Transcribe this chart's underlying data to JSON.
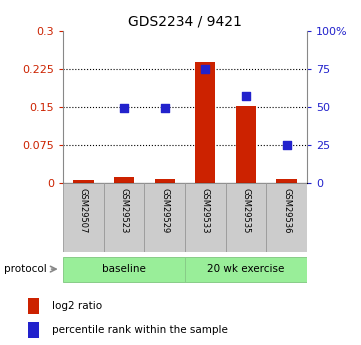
{
  "title": "GDS2234 / 9421",
  "samples": [
    "GSM29507",
    "GSM29523",
    "GSM29529",
    "GSM29533",
    "GSM29535",
    "GSM29536"
  ],
  "log2_ratio": [
    0.005,
    0.012,
    0.008,
    0.238,
    0.152,
    0.008
  ],
  "pct_values": [
    null,
    49,
    49,
    75,
    57,
    25
  ],
  "left_ylim": [
    0,
    0.3
  ],
  "left_yticks": [
    0,
    0.075,
    0.15,
    0.225,
    0.3
  ],
  "left_yticklabels": [
    "0",
    "0.075",
    "0.15",
    "0.225",
    "0.3"
  ],
  "right_ylim": [
    0,
    100
  ],
  "right_yticks": [
    0,
    25,
    50,
    75,
    100
  ],
  "right_yticklabels": [
    "0",
    "25",
    "50",
    "75",
    "100%"
  ],
  "bar_color": "#CC2200",
  "dot_color": "#2222CC",
  "hline_values": [
    0.075,
    0.15,
    0.225
  ],
  "legend_items": [
    {
      "color": "#CC2200",
      "label": "log2 ratio"
    },
    {
      "color": "#2222CC",
      "label": "percentile rank within the sample"
    }
  ],
  "protocol_label": "protocol",
  "background_color": "#ffffff",
  "sample_box_color": "#cccccc",
  "green_color": "#99EE99",
  "green_border": "#88CC88"
}
